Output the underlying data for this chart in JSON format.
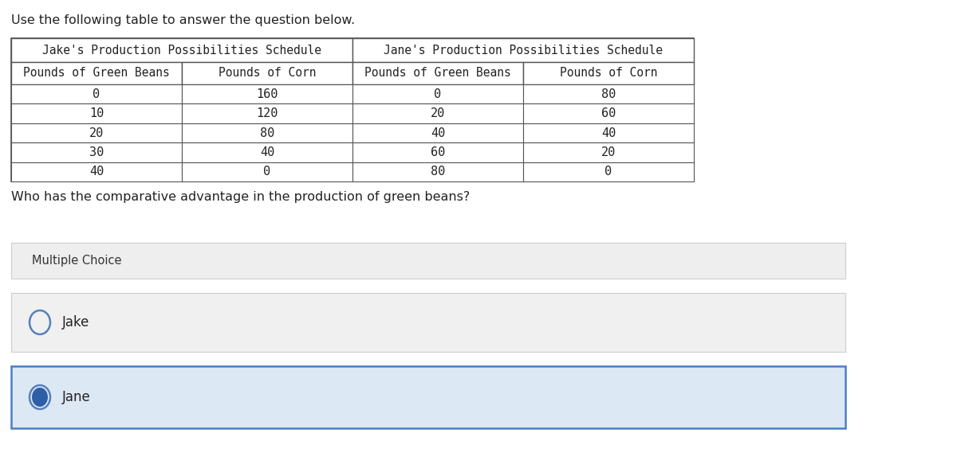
{
  "title_text": "Use the following table to answer the question below.",
  "jake_title": "Jake's Production Possibilities Schedule",
  "jane_title": "Jane's Production Possibilities Schedule",
  "jake_col1_header": "Pounds of Green Beans",
  "jake_col2_header": "Pounds of Corn",
  "jane_col1_header": "Pounds of Green Beans",
  "jane_col2_header": "Pounds of Corn",
  "jake_col1": [
    0,
    10,
    20,
    30,
    40
  ],
  "jake_col2": [
    160,
    120,
    80,
    40,
    0
  ],
  "jane_col1": [
    0,
    20,
    40,
    60,
    80
  ],
  "jane_col2": [
    80,
    60,
    40,
    20,
    0
  ],
  "question": "Who has the comparative advantage in the production of green beans?",
  "mc_label": "Multiple Choice",
  "choice1": "Jake",
  "choice2": "Jane",
  "bg_color": "#ffffff",
  "table_border_color": "#555555",
  "mc_bg_color": "#eeeeee",
  "jake_choice_bg": "#f0f0f0",
  "jane_choice_bg": "#dde8f5",
  "jane_choice_border": "#4a7fc1",
  "radio_filled_color": "#2d5fa8",
  "radio_stroke_color": "#5580bb",
  "title_fontsize": 11.5,
  "header_fontsize": 10.5,
  "data_fontsize": 11,
  "question_fontsize": 11.5,
  "mc_fontsize": 10.5,
  "choice_fontsize": 12
}
